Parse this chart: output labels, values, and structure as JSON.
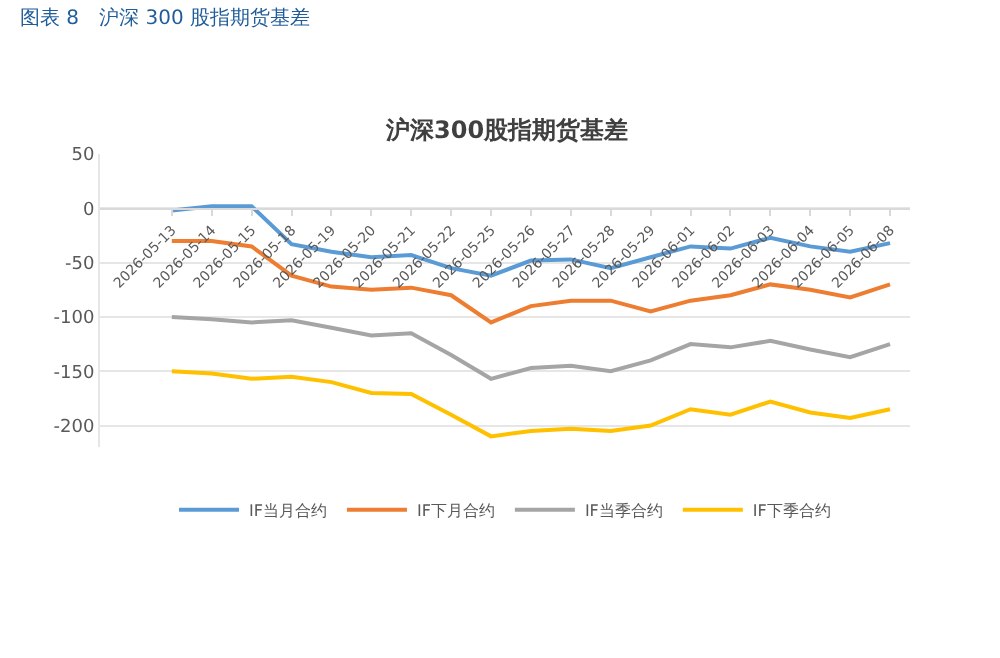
{
  "chart_data": {
    "type": "line",
    "title": "图表 8　沪深 300 股指期货基差",
    "subtitle": "沪深300股指期货基差",
    "categories": [
      "2026-05-13",
      "2026-05-14",
      "2026-05-15",
      "2026-05-18",
      "2026-05-19",
      "2026-05-20",
      "2026-05-21",
      "2026-05-22",
      "2026-05-25",
      "2026-05-26",
      "2026-05-27",
      "2026-05-28",
      "2026-05-29",
      "2026-06-01",
      "2026-06-02",
      "2026-06-03",
      "2026-06-04",
      "2026-06-05",
      "2026-06-08"
    ],
    "series": [
      {
        "name": "IF当月合约",
        "color": "#5b9bd5",
        "values": [
          -2,
          2,
          2,
          -33,
          -40,
          -45,
          -43,
          -55,
          -62,
          -48,
          -47,
          -55,
          -45,
          -35,
          -37,
          -27,
          -35,
          -40,
          -32
        ]
      },
      {
        "name": "IF下月合约",
        "color": "#ed7d31",
        "values": [
          -30,
          -30,
          -35,
          -62,
          -72,
          -75,
          -73,
          -80,
          -105,
          -90,
          -85,
          -85,
          -95,
          -85,
          -80,
          -70,
          -75,
          -82,
          -70
        ]
      },
      {
        "name": "IF当季合约",
        "color": "#a5a5a5",
        "values": [
          -100,
          -102,
          -105,
          -103,
          -110,
          -117,
          -115,
          -135,
          -157,
          -147,
          -145,
          -150,
          -140,
          -125,
          -128,
          -122,
          -130,
          -137,
          -125
        ]
      },
      {
        "name": "IF下季合约",
        "color": "#ffc000",
        "values": [
          -150,
          -152,
          -157,
          -155,
          -160,
          -170,
          -171,
          -190,
          -210,
          -205,
          -203,
          -205,
          -200,
          -185,
          -190,
          -178,
          -188,
          -193,
          -185
        ]
      }
    ],
    "ylim": [
      -220,
      50
    ],
    "yticks": [
      50,
      0,
      -50,
      -100,
      -150,
      -200
    ],
    "grid": "y",
    "legend": "bottom",
    "marker": "none",
    "line_style": "solid"
  }
}
